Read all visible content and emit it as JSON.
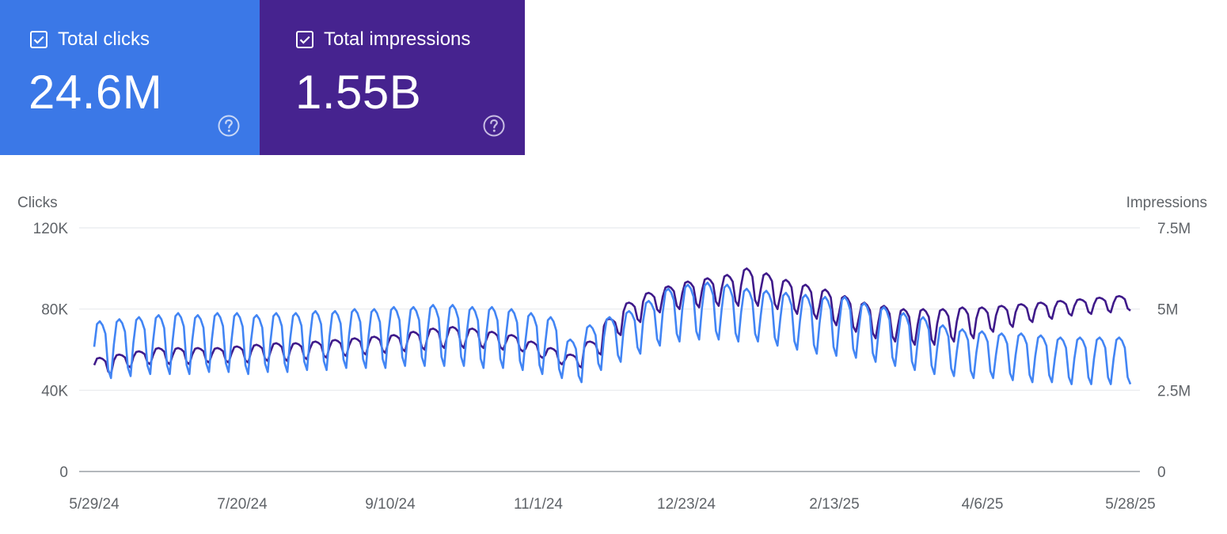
{
  "colors": {
    "clicks_card": "#3b78e7",
    "impressions_card": "#46238f",
    "clicks_line": "#4285f4",
    "impressions_line": "#3f1a8a",
    "grid": "#e8eaed",
    "axis_text": "#5f6368"
  },
  "cards": {
    "clicks": {
      "label": "Total clicks",
      "value": "24.6M",
      "checked": true,
      "icon": "checkbox-icon",
      "help_icon": "help-icon"
    },
    "impressions": {
      "label": "Total impressions",
      "value": "1.55B",
      "checked": true,
      "icon": "checkbox-icon",
      "help_icon": "help-icon"
    }
  },
  "chart_data": {
    "type": "line",
    "title": "",
    "y_left": {
      "label": "Clicks",
      "ticks": [
        "0",
        "40K",
        "80K",
        "120K"
      ],
      "tick_values": [
        0,
        40000,
        80000,
        120000
      ],
      "range": [
        0,
        120000
      ]
    },
    "y_right": {
      "label": "Impressions",
      "ticks": [
        "0",
        "2.5M",
        "5M",
        "7.5M"
      ],
      "tick_values": [
        0,
        2500000,
        5000000,
        7500000
      ],
      "range": [
        0,
        7500000
      ]
    },
    "x_ticks": [
      "5/29/24",
      "7/20/24",
      "9/10/24",
      "11/1/24",
      "12/23/24",
      "2/13/25",
      "4/6/25",
      "5/28/25"
    ],
    "grid": true,
    "series": [
      {
        "name": "Clicks",
        "axis": "left",
        "weekly_peak": [
          74,
          75,
          76,
          77,
          78,
          77,
          78,
          78,
          77,
          78,
          78,
          79,
          79,
          80,
          80,
          81,
          81,
          82,
          82,
          81,
          81,
          80,
          78,
          76,
          65,
          72,
          76,
          79,
          84,
          90,
          92,
          93,
          92,
          90,
          89,
          88,
          87,
          86,
          86,
          83,
          81,
          78,
          76,
          72,
          70,
          69,
          68,
          68,
          67,
          66,
          66,
          66,
          66
        ],
        "weekly_low": [
          46,
          47,
          48,
          48,
          48,
          49,
          49,
          48,
          49,
          49,
          50,
          50,
          51,
          51,
          51,
          52,
          52,
          52,
          52,
          51,
          51,
          50,
          48,
          46,
          44,
          50,
          54,
          58,
          62,
          64,
          65,
          65,
          64,
          64,
          62,
          60,
          58,
          57,
          56,
          54,
          52,
          50,
          48,
          47,
          46,
          46,
          45,
          44,
          44,
          43,
          43,
          43,
          43
        ]
      },
      {
        "name": "Impressions",
        "axis": "right",
        "weekly_peak": [
          3.5,
          3.6,
          3.7,
          3.8,
          3.8,
          3.8,
          3.8,
          3.85,
          3.9,
          3.95,
          3.95,
          4.0,
          4.05,
          4.1,
          4.15,
          4.2,
          4.3,
          4.4,
          4.45,
          4.4,
          4.3,
          4.2,
          4.0,
          3.8,
          3.6,
          4.0,
          4.7,
          5.2,
          5.5,
          5.7,
          5.85,
          5.95,
          6.05,
          6.25,
          6.1,
          5.9,
          5.75,
          5.6,
          5.4,
          5.2,
          5.1,
          5.0,
          5.0,
          5.0,
          5.05,
          5.05,
          5.1,
          5.15,
          5.2,
          5.25,
          5.3,
          5.35,
          5.4
        ],
        "weekly_low": [
          3.0,
          3.2,
          3.3,
          3.3,
          3.3,
          3.35,
          3.35,
          3.35,
          3.4,
          3.4,
          3.45,
          3.5,
          3.55,
          3.6,
          3.65,
          3.7,
          3.75,
          3.8,
          3.8,
          3.8,
          3.75,
          3.7,
          3.5,
          3.3,
          3.2,
          3.6,
          4.2,
          4.6,
          4.9,
          5.0,
          5.05,
          5.1,
          5.1,
          5.1,
          5.0,
          4.85,
          4.7,
          4.5,
          4.3,
          4.1,
          4.0,
          3.9,
          3.9,
          4.0,
          4.1,
          4.3,
          4.45,
          4.6,
          4.7,
          4.8,
          4.85,
          4.9,
          4.95
        ]
      }
    ]
  }
}
